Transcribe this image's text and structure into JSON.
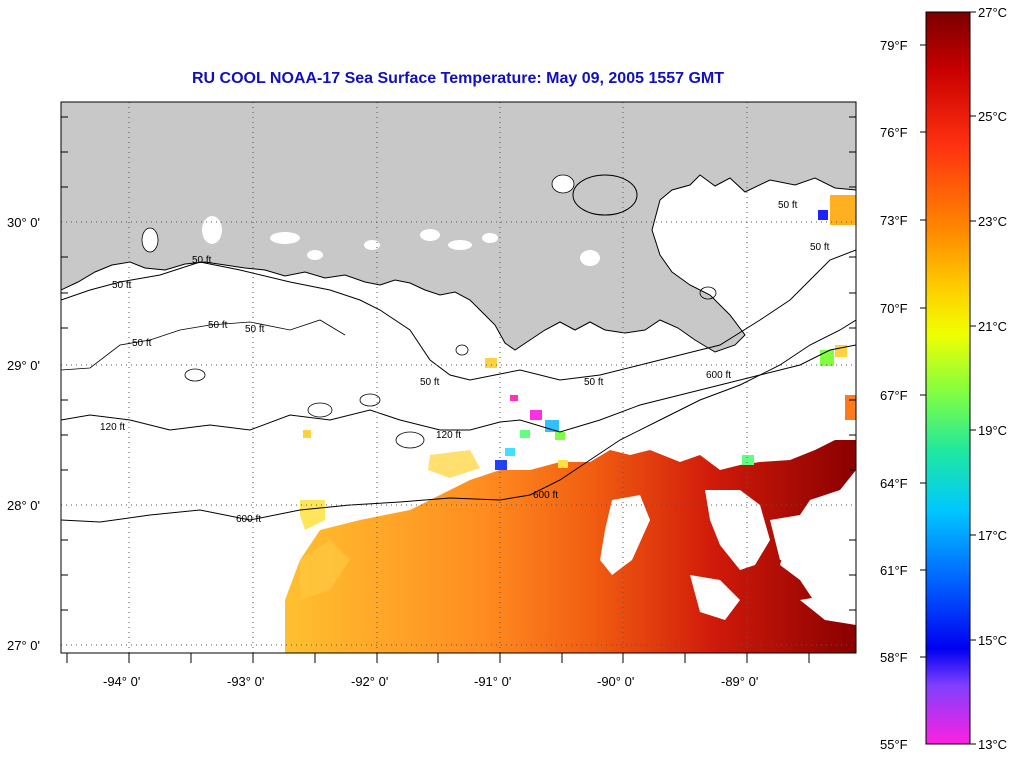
{
  "title": "RU COOL  NOAA-17  Sea Surface Temperature:  May 09, 2005 1557 GMT",
  "lat_labels": [
    "30° 0'",
    "29° 0'",
    "28° 0'",
    "27° 0'"
  ],
  "lon_labels": [
    "-94° 0'",
    "-93° 0'",
    "-92° 0'",
    "-91° 0'",
    "-90° 0'",
    "-89° 0'"
  ],
  "colorbar": {
    "fahrenheit": [
      "79°F",
      "76°F",
      "73°F",
      "70°F",
      "67°F",
      "64°F",
      "61°F",
      "58°F",
      "55°F"
    ],
    "celsius": [
      "27°C",
      "25°C",
      "23°C",
      "21°C",
      "19°C",
      "17°C",
      "15°C",
      "13°C"
    ]
  },
  "contour_labels": {
    "c50": "50 ft",
    "c120": "120 ft",
    "c600": "600 ft"
  },
  "colors": {
    "land": "#c8c8c8",
    "title": "#1010c0",
    "warm_max": "#8b0000",
    "warm": "#e02010",
    "mid": "#ff7a1a",
    "cool": "#ffd040"
  }
}
